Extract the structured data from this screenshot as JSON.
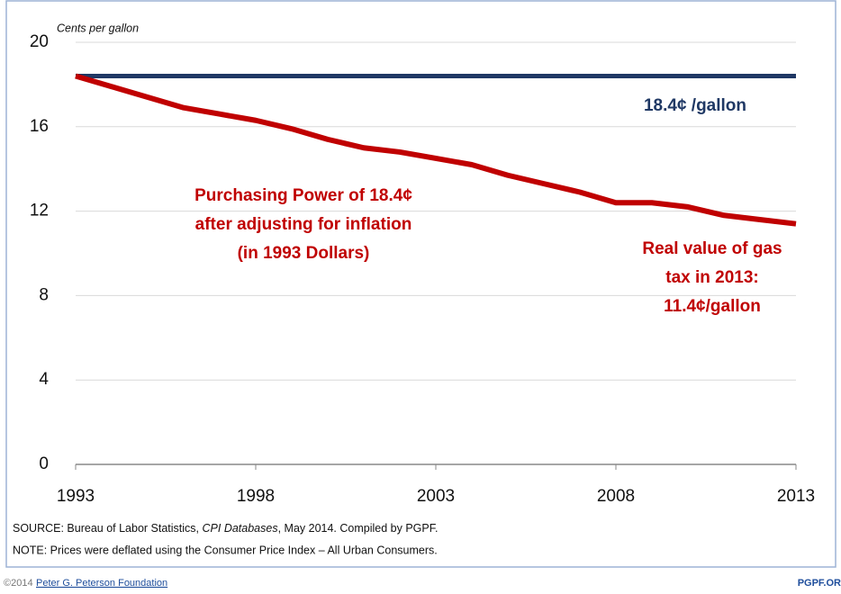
{
  "chart_data": {
    "type": "line",
    "y_label": "Cents per gallon",
    "x": [
      1993,
      1994,
      1995,
      1996,
      1997,
      1998,
      1999,
      2000,
      2001,
      2002,
      2003,
      2004,
      2005,
      2006,
      2007,
      2008,
      2009,
      2010,
      2011,
      2012,
      2013
    ],
    "series": [
      {
        "name": "18.4¢ /gallon",
        "color": "#1f3864",
        "values": [
          18.4,
          18.4,
          18.4,
          18.4,
          18.4,
          18.4,
          18.4,
          18.4,
          18.4,
          18.4,
          18.4,
          18.4,
          18.4,
          18.4,
          18.4,
          18.4,
          18.4,
          18.4,
          18.4,
          18.4,
          18.4
        ]
      },
      {
        "name": "Purchasing Power of 18.4¢",
        "color": "#c00000",
        "values": [
          18.4,
          17.9,
          17.4,
          16.9,
          16.6,
          16.3,
          15.9,
          15.4,
          15.0,
          14.8,
          14.5,
          14.2,
          13.7,
          13.3,
          12.9,
          12.4,
          12.4,
          12.2,
          11.8,
          11.6,
          11.4
        ]
      }
    ],
    "xlim": [
      1993,
      2013
    ],
    "xticks": [
      1993,
      1998,
      2003,
      2008,
      2013
    ],
    "ylim": [
      0,
      20
    ],
    "yticks": [
      0,
      4,
      8,
      12,
      16,
      20
    ],
    "grid": true,
    "annotations": [
      {
        "lines": [
          "18.4¢ /gallon"
        ],
        "color": "#1f3864"
      },
      {
        "lines": [
          "Purchasing Power of 18.4¢",
          "after adjusting for inflation",
          "(in 1993 Dollars)"
        ],
        "color": "#c00000"
      },
      {
        "lines": [
          "Real value of gas",
          "tax in 2013:",
          "11.4¢/gallon"
        ],
        "color": "#c00000"
      }
    ],
    "source": [
      "SOURCE: Bureau of Labor Statistics, ",
      "CPI Databases",
      ", May 2014. Compiled by PGPF."
    ],
    "note": "NOTE: Prices were deflated using the Consumer Price Index – All Urban Consumers.",
    "footer": {
      "copyright": "©2014",
      "organization": "Peter G. Peterson Foundation",
      "site": "PGPF.OR"
    }
  }
}
